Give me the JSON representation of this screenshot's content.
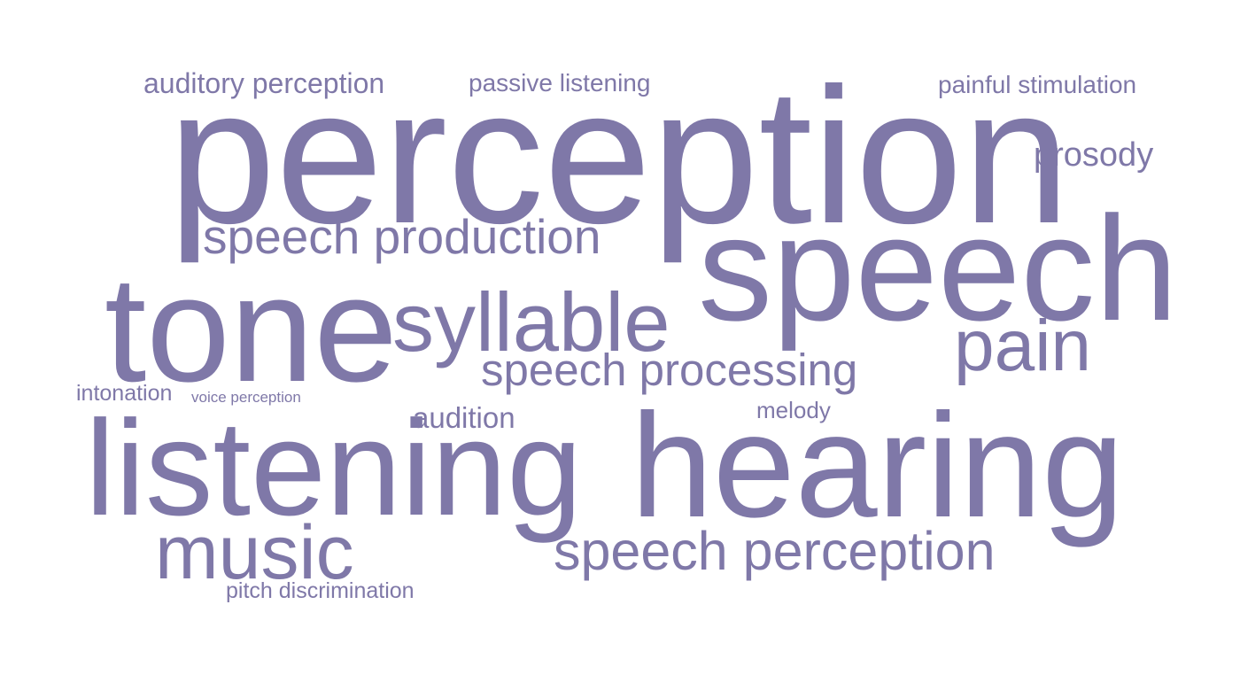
{
  "colors": {
    "word": "#7f78a8",
    "background": "#ffffff"
  },
  "cloud": {
    "words": {
      "perception": "perception",
      "speech": "speech",
      "hearing": "hearing",
      "listening": "listening",
      "tone": "tone",
      "syllable": "syllable",
      "pain": "pain",
      "music": "music",
      "speech_production": "speech production",
      "speech_processing": "speech processing",
      "speech_perception": "speech perception",
      "auditory_perception": "auditory perception",
      "passive_listening": "passive listening",
      "painful_stimulation": "painful stimulation",
      "prosody": "prosody",
      "intonation": "intonation",
      "voice_perception": "voice perception",
      "audition": "audition",
      "melody": "melody",
      "pitch_discrimination": "pitch discrimination"
    }
  }
}
